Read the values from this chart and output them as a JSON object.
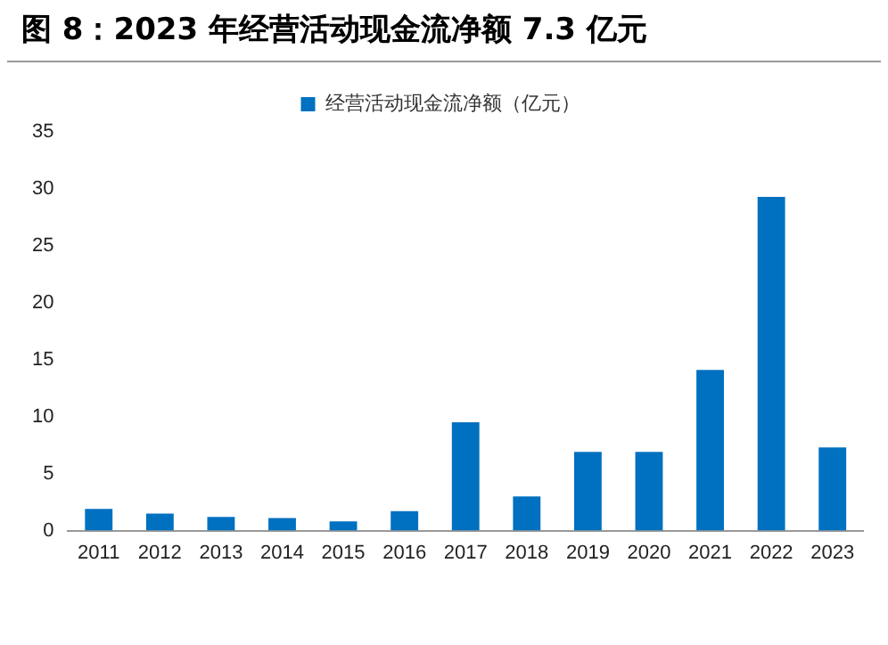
{
  "chart_data": {
    "type": "bar",
    "title": "图 8：2023 年经营活动现金流净额 7.3 亿元",
    "categories": [
      "2011",
      "2012",
      "2013",
      "2014",
      "2015",
      "2016",
      "2017",
      "2018",
      "2019",
      "2020",
      "2021",
      "2022",
      "2023"
    ],
    "series": [
      {
        "name": "经营活动现金流净额（亿元）",
        "color": "#0070c0",
        "values": [
          1.9,
          1.5,
          1.2,
          1.1,
          0.8,
          1.7,
          9.5,
          3.0,
          6.9,
          6.9,
          14.1,
          29.3,
          7.3
        ]
      }
    ],
    "ylim": [
      0,
      35
    ],
    "yticks": [
      0,
      5,
      10,
      15,
      20,
      25,
      30,
      35
    ],
    "grid": false,
    "legend": "top"
  }
}
